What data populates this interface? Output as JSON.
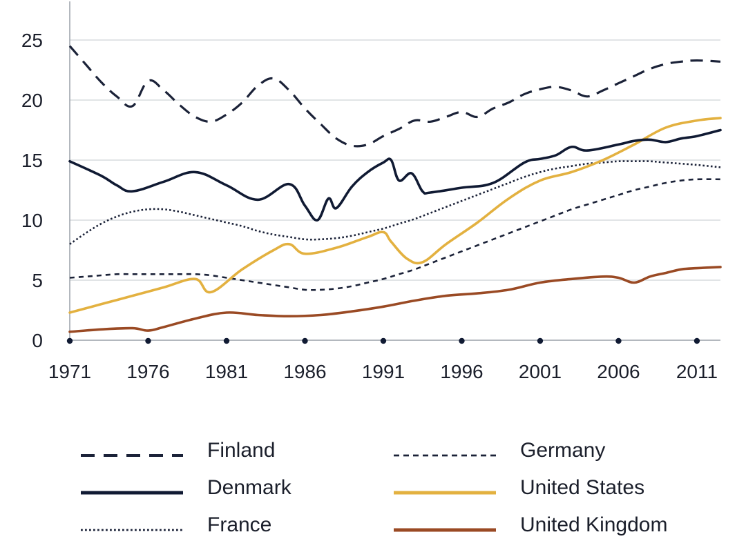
{
  "chart_data": {
    "type": "line",
    "title": "",
    "xlabel": "",
    "ylabel": "",
    "xlim": [
      1971,
      2012.5
    ],
    "ylim": [
      0,
      25
    ],
    "x_ticks": [
      "1971",
      "1976",
      "1981",
      "1986",
      "1991",
      "1996",
      "2001",
      "2006",
      "2011"
    ],
    "x_tick_values": [
      1971,
      1976,
      1981,
      1986,
      1991,
      1996,
      2001,
      2006,
      2011
    ],
    "y_ticks": [
      "0",
      "5",
      "10",
      "15",
      "20",
      "25"
    ],
    "y_tick_values": [
      0,
      5,
      10,
      15,
      20,
      25
    ],
    "grid": "horizontal",
    "legend_position": "bottom",
    "series": [
      {
        "name": "Finland",
        "color": "#1b2238",
        "style": "long-dash",
        "x": [
          1971,
          1972,
          1973,
          1974,
          1975,
          1976,
          1977,
          1978,
          1979,
          1980,
          1981,
          1982,
          1983,
          1984,
          1985,
          1986,
          1987,
          1988,
          1989,
          1990,
          1991,
          1992,
          1993,
          1994,
          1995,
          1996,
          1997,
          1998,
          1999,
          2000,
          2001,
          2002,
          2003,
          2004,
          2005,
          2006,
          2007,
          2008,
          2009,
          2010,
          2011,
          2012.5
        ],
        "y": [
          24.5,
          23.0,
          21.5,
          20.3,
          19.5,
          21.6,
          20.8,
          19.6,
          18.6,
          18.2,
          18.8,
          19.8,
          21.2,
          21.8,
          20.8,
          19.3,
          18.0,
          16.8,
          16.2,
          16.3,
          17.0,
          17.6,
          18.3,
          18.2,
          18.6,
          19.0,
          18.6,
          19.3,
          19.8,
          20.5,
          20.9,
          21.1,
          20.8,
          20.3,
          20.8,
          21.4,
          22.0,
          22.6,
          23.0,
          23.2,
          23.3,
          23.2
        ]
      },
      {
        "name": "Denmark",
        "color": "#101a33",
        "style": "solid",
        "x": [
          1971,
          1973,
          1974,
          1975,
          1977,
          1979,
          1981,
          1983,
          1985,
          1986,
          1986.8,
          1987.5,
          1988,
          1989,
          1990,
          1991,
          1991.5,
          1992,
          1992.8,
          1993.5,
          1994,
          1996,
          1998,
          2000,
          2001,
          2002,
          2003,
          2004,
          2006,
          2007,
          2008,
          2009,
          2010,
          2011,
          2012.5
        ],
        "y": [
          14.9,
          13.7,
          12.9,
          12.4,
          13.2,
          14.0,
          12.9,
          11.7,
          13.0,
          11.2,
          10.0,
          11.8,
          11.0,
          12.8,
          14.0,
          14.8,
          15.0,
          13.3,
          13.9,
          12.4,
          12.3,
          12.7,
          13.1,
          14.8,
          15.1,
          15.4,
          16.1,
          15.8,
          16.3,
          16.6,
          16.7,
          16.5,
          16.8,
          17.0,
          17.5
        ]
      },
      {
        "name": "France",
        "color": "#1b2238",
        "style": "dotted",
        "x": [
          1971,
          1972,
          1973,
          1974,
          1975,
          1976,
          1977,
          1978,
          1979,
          1980,
          1981,
          1982,
          1983,
          1984,
          1985,
          1986,
          1987,
          1988,
          1989,
          1990,
          1991,
          1992,
          1993,
          1994,
          1995,
          1996,
          1997,
          1998,
          1999,
          2000,
          2001,
          2002,
          2003,
          2004,
          2005,
          2006,
          2007,
          2008,
          2009,
          2010,
          2011,
          2012.5
        ],
        "y": [
          8.0,
          8.9,
          9.7,
          10.3,
          10.7,
          10.9,
          10.9,
          10.7,
          10.4,
          10.1,
          9.8,
          9.5,
          9.1,
          8.8,
          8.6,
          8.4,
          8.4,
          8.5,
          8.7,
          9.0,
          9.3,
          9.7,
          10.1,
          10.6,
          11.1,
          11.6,
          12.1,
          12.6,
          13.1,
          13.6,
          14.0,
          14.3,
          14.5,
          14.7,
          14.8,
          14.9,
          14.9,
          14.9,
          14.8,
          14.7,
          14.6,
          14.4
        ]
      },
      {
        "name": "Germany",
        "color": "#1b2238",
        "style": "short-dash",
        "x": [
          1971,
          1972,
          1973,
          1974,
          1975,
          1976,
          1977,
          1978,
          1979,
          1980,
          1981,
          1982,
          1983,
          1984,
          1985,
          1986,
          1987,
          1988,
          1989,
          1990,
          1991,
          1992,
          1993,
          1994,
          1995,
          1996,
          1997,
          1998,
          1999,
          2000,
          2001,
          2002,
          2003,
          2004,
          2005,
          2006,
          2007,
          2008,
          2009,
          2010,
          2011,
          2012.5
        ],
        "y": [
          5.2,
          5.3,
          5.4,
          5.5,
          5.5,
          5.5,
          5.5,
          5.5,
          5.5,
          5.4,
          5.2,
          5.0,
          4.8,
          4.6,
          4.4,
          4.2,
          4.2,
          4.3,
          4.5,
          4.8,
          5.1,
          5.5,
          5.9,
          6.4,
          6.9,
          7.4,
          7.9,
          8.4,
          8.9,
          9.4,
          9.9,
          10.4,
          10.9,
          11.3,
          11.7,
          12.1,
          12.5,
          12.8,
          13.1,
          13.3,
          13.4,
          13.4
        ]
      },
      {
        "name": "United States",
        "color": "#e3b140",
        "style": "solid",
        "x": [
          1971,
          1973,
          1975,
          1977,
          1979,
          1980,
          1982,
          1984,
          1985,
          1986,
          1988,
          1990,
          1991,
          1991.5,
          1992.5,
          1993.5,
          1995,
          1997,
          1999,
          2001,
          2003,
          2005,
          2007,
          2009,
          2011,
          2012.5
        ],
        "y": [
          2.3,
          3.0,
          3.7,
          4.4,
          5.1,
          4.0,
          5.9,
          7.5,
          8.0,
          7.2,
          7.7,
          8.6,
          9.0,
          8.2,
          6.8,
          6.5,
          8.0,
          9.8,
          11.8,
          13.3,
          14.0,
          15.0,
          16.3,
          17.7,
          18.3,
          18.5
        ]
      },
      {
        "name": "United Kingdom",
        "color": "#9a4a24",
        "style": "solid",
        "x": [
          1971,
          1973,
          1975,
          1976,
          1977,
          1979,
          1981,
          1983,
          1985,
          1987,
          1989,
          1991,
          1993,
          1995,
          1997,
          1999,
          2001,
          2003,
          2005,
          2006,
          2007,
          2008,
          2009,
          2010,
          2011,
          2012.5
        ],
        "y": [
          0.7,
          0.9,
          1.0,
          0.8,
          1.1,
          1.8,
          2.3,
          2.1,
          2.0,
          2.1,
          2.4,
          2.8,
          3.3,
          3.7,
          3.9,
          4.2,
          4.8,
          5.1,
          5.3,
          5.2,
          4.8,
          5.3,
          5.6,
          5.9,
          6.0,
          6.1
        ]
      }
    ]
  }
}
